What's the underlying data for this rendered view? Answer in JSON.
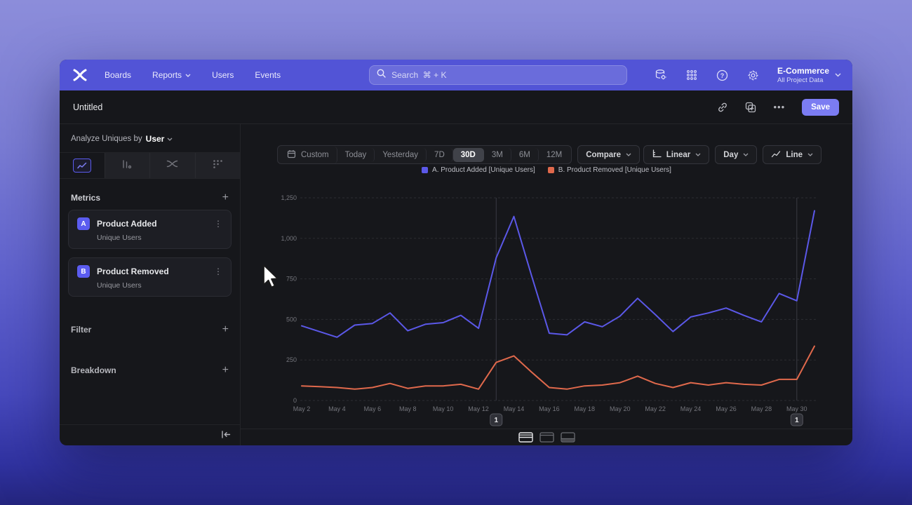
{
  "theme": {
    "nav_bg": "#5254d6",
    "accent": "#5b5cf0",
    "save_button_bg": "#7b7cf2",
    "window_bg": "#16171b",
    "series_a_color": "#5b58e8",
    "series_b_color": "#e0694c"
  },
  "nav": {
    "items": [
      "Boards",
      "Reports",
      "Users",
      "Events"
    ],
    "search_placeholder": "Search  ⌘ + K",
    "project_name": "E-Commerce",
    "project_subtitle": "All Project Data"
  },
  "titlebar": {
    "title": "Untitled",
    "more_label": "•••",
    "save_label": "Save"
  },
  "sidebar": {
    "analyze_label": "Analyze Uniques by",
    "analyze_value": "User",
    "metrics_header": "Metrics",
    "filter_header": "Filter",
    "breakdown_header": "Breakdown",
    "add_label": "+",
    "metrics": [
      {
        "badge": "A",
        "name": "Product Added",
        "subtitle": "Unique Users",
        "kebab": "⋮"
      },
      {
        "badge": "B",
        "name": "Product Removed",
        "subtitle": "Unique Users",
        "kebab": "⋮"
      }
    ]
  },
  "toolbar": {
    "ranges": [
      "Custom",
      "Today",
      "Yesterday",
      "7D",
      "30D",
      "3M",
      "6M",
      "12M"
    ],
    "selected_range": "30D",
    "compare_label": "Compare",
    "scale_label": "Linear",
    "interval_label": "Day",
    "chart_type_label": "Line"
  },
  "chart_data": {
    "type": "line",
    "x": [
      "May 2",
      "May 3",
      "May 4",
      "May 5",
      "May 6",
      "May 7",
      "May 8",
      "May 9",
      "May 10",
      "May 11",
      "May 12",
      "May 13",
      "May 14",
      "May 15",
      "May 16",
      "May 17",
      "May 18",
      "May 19",
      "May 20",
      "May 21",
      "May 22",
      "May 23",
      "May 24",
      "May 25",
      "May 26",
      "May 27",
      "May 28",
      "May 29",
      "May 30",
      "May 31"
    ],
    "x_tick_step": 2,
    "ylim": [
      0,
      1250
    ],
    "yticks": [
      0,
      250,
      500,
      750,
      1000,
      1250
    ],
    "ytick_labels": [
      "0",
      "250",
      "500",
      "750",
      "1,000",
      "1,250"
    ],
    "grid": "horizontal-dashed",
    "legend_position": "top-center",
    "series": [
      {
        "name": "A. Product Added [Unique Users]",
        "color": "#5b58e8",
        "values": [
          460,
          425,
          390,
          465,
          475,
          540,
          430,
          470,
          480,
          525,
          445,
          880,
          1135,
          770,
          415,
          405,
          485,
          455,
          520,
          630,
          530,
          425,
          515,
          540,
          570,
          525,
          485,
          660,
          615,
          1170
        ]
      },
      {
        "name": "B. Product Removed [Unique Users]",
        "color": "#e0694c",
        "values": [
          90,
          85,
          80,
          70,
          80,
          105,
          75,
          90,
          90,
          100,
          70,
          235,
          275,
          175,
          80,
          70,
          90,
          95,
          110,
          150,
          105,
          80,
          110,
          95,
          110,
          100,
          95,
          130,
          130,
          335
        ]
      }
    ],
    "annotations": [
      {
        "label": "1",
        "x": "May 13"
      },
      {
        "label": "1",
        "x": "May 30"
      }
    ]
  }
}
